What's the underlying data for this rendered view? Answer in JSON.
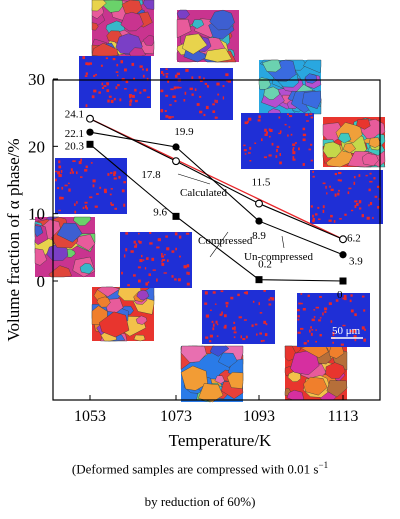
{
  "chart_data": {
    "type": "line",
    "xlabel": "Temperature/K",
    "ylabel": "Volume fraction of α phase/%",
    "x": [
      1053,
      1073,
      1093,
      1113
    ],
    "xticks": [
      "1053",
      "1073",
      "1093",
      "1113"
    ],
    "ylim": [
      0,
      30
    ],
    "yticks": [
      "0",
      "10",
      "20",
      "30"
    ],
    "grid": false,
    "series": [
      {
        "name": "Compressed",
        "marker": "filled-square",
        "color": "#000000",
        "values": [
          20.3,
          9.6,
          0.2,
          0
        ],
        "labels": [
          "20.3",
          "9.6",
          "0.2",
          "0"
        ]
      },
      {
        "name": "Un-compressed",
        "marker": "filled-circle",
        "color": "#000000",
        "values": [
          22.1,
          19.9,
          8.9,
          3.9
        ],
        "labels": [
          "22.1",
          "19.9",
          "8.9",
          "3.9"
        ]
      },
      {
        "name": "Calculated",
        "marker": "open-circle",
        "color": "#000000",
        "values": [
          24.1,
          17.8,
          11.5,
          6.2
        ],
        "labels": [
          "24.1",
          "17.8",
          "11.5",
          "6.2"
        ]
      }
    ],
    "fit_line": {
      "color": "#e8262a",
      "from": [
        1053,
        24.1
      ],
      "to": [
        1113,
        6.2
      ]
    },
    "scale_bar_label": "50 μm"
  },
  "caption": {
    "line1_prefix": "(Deformed samples are compressed with 0.01 s",
    "line1_sup": "−1",
    "line2": "by reduction of 60%)"
  },
  "colors": {
    "ebsd_blue": "#1f2fd6",
    "alpha_red": "#e8262a",
    "fit_line": "#e8262a"
  }
}
